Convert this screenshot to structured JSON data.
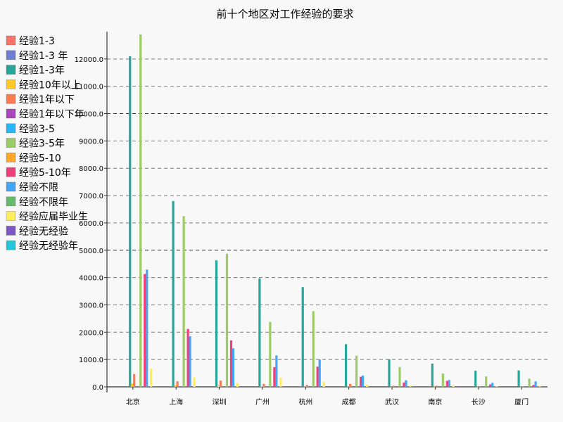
{
  "chart_data": {
    "type": "bar",
    "title": "前十个地区对工作经验的要求",
    "xlabel": "",
    "ylabel": "",
    "ylim": [
      0,
      13000
    ],
    "yticks": [
      0,
      1000,
      2000,
      3000,
      4000,
      5000,
      6000,
      7000,
      8000,
      9000,
      10000,
      11000,
      12000
    ],
    "ytick_labels": [
      "0.0",
      "1000.0",
      "2000.0",
      "3000.0",
      "4000.0",
      "5000.0",
      "6000.0",
      "7000.0",
      "8000.0",
      "9000.0",
      "10000.0",
      "11000.0",
      "12000.0"
    ],
    "grid": "horizontal-dashed",
    "legend_position": "left",
    "categories": [
      "北京",
      "上海",
      "深圳",
      "广州",
      "杭州",
      "成都",
      "武汉",
      "南京",
      "长沙",
      "厦门"
    ],
    "series": [
      {
        "name": "经验1-3",
        "color": "#fa7268",
        "values": [
          0,
          0,
          0,
          0,
          0,
          0,
          0,
          0,
          0,
          0
        ]
      },
      {
        "name": "经验1-3 年",
        "color": "#6f7ed0",
        "values": [
          0,
          0,
          0,
          0,
          0,
          0,
          0,
          0,
          0,
          0
        ]
      },
      {
        "name": "经验1-3年",
        "color": "#26a69a",
        "values": [
          12100,
          6800,
          4630,
          3970,
          3650,
          1560,
          1010,
          850,
          590,
          600
        ]
      },
      {
        "name": "经验10年以上",
        "color": "#ffca28",
        "values": [
          130,
          60,
          40,
          20,
          10,
          10,
          5,
          5,
          5,
          5
        ]
      },
      {
        "name": "经验1年以下",
        "color": "#ff7a50",
        "values": [
          470,
          200,
          230,
          110,
          70,
          110,
          40,
          40,
          25,
          25
        ]
      },
      {
        "name": "经验1年以下年",
        "color": "#ab47bc",
        "values": [
          0,
          0,
          0,
          0,
          0,
          0,
          0,
          0,
          0,
          0
        ]
      },
      {
        "name": "经验3-5",
        "color": "#29b6f6",
        "values": [
          0,
          0,
          0,
          0,
          0,
          0,
          0,
          0,
          0,
          0
        ]
      },
      {
        "name": "经验3-5年",
        "color": "#9ccc65",
        "values": [
          12900,
          6250,
          4870,
          2380,
          2770,
          1140,
          720,
          490,
          380,
          300
        ]
      },
      {
        "name": "经验5-10",
        "color": "#ffa726",
        "values": [
          0,
          0,
          0,
          0,
          0,
          0,
          0,
          0,
          0,
          0
        ]
      },
      {
        "name": "经验5-10年",
        "color": "#ec407a",
        "values": [
          4130,
          2120,
          1700,
          720,
          740,
          370,
          160,
          220,
          90,
          70
        ]
      },
      {
        "name": "经验不限",
        "color": "#42a5f5",
        "values": [
          4290,
          1850,
          1410,
          1150,
          1000,
          410,
          240,
          250,
          150,
          200
        ]
      },
      {
        "name": "经验不限年",
        "color": "#66bb6a",
        "values": [
          0,
          0,
          0,
          0,
          0,
          0,
          0,
          0,
          0,
          0
        ]
      },
      {
        "name": "经验应届毕业生",
        "color": "#ffee58",
        "values": [
          670,
          350,
          140,
          330,
          190,
          80,
          50,
          60,
          30,
          40
        ]
      },
      {
        "name": "经验无经验",
        "color": "#7e57c2",
        "values": [
          0,
          0,
          0,
          0,
          0,
          0,
          0,
          0,
          0,
          0
        ]
      },
      {
        "name": "经验无经验年",
        "color": "#26c6da",
        "values": [
          0,
          0,
          0,
          0,
          0,
          0,
          0,
          0,
          0,
          0
        ]
      }
    ]
  }
}
